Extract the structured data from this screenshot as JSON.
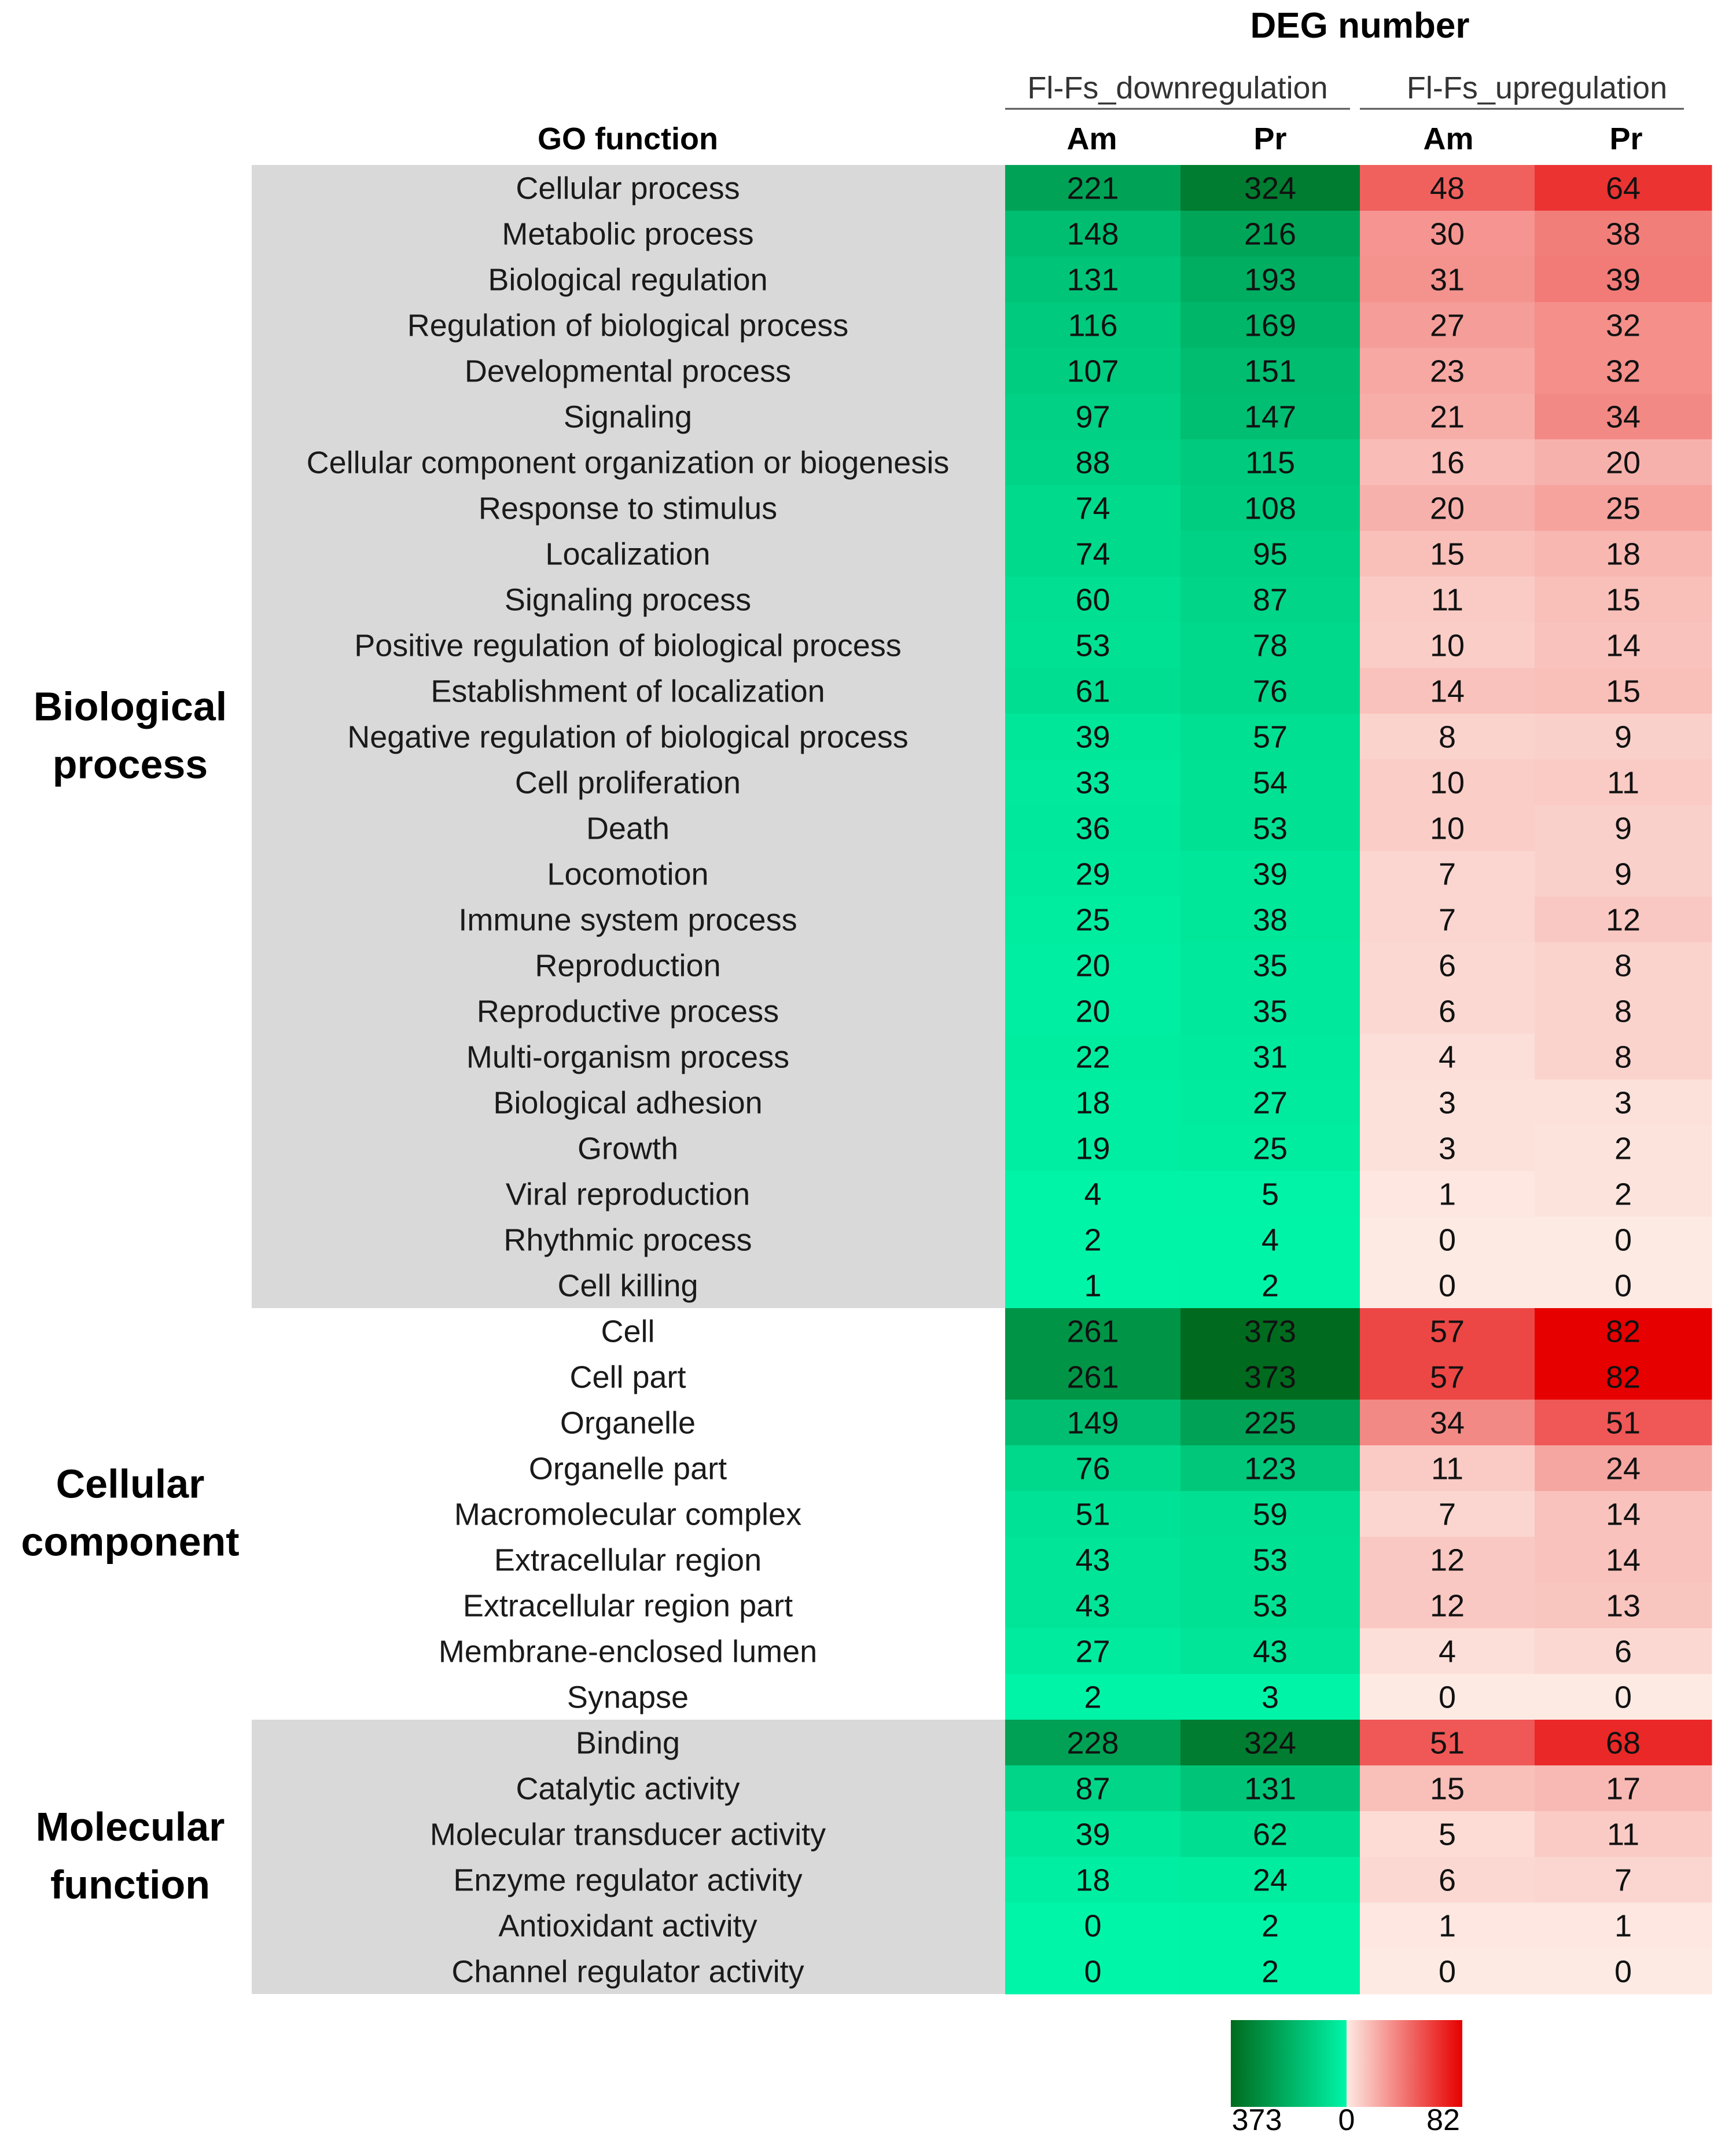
{
  "chart_data": {
    "type": "heatmap",
    "title": "DEG number",
    "row_header": "GO function",
    "column_groups": [
      {
        "label": "Fl-Fs_downregulation",
        "columns": [
          "Am",
          "Pr"
        ]
      },
      {
        "label": "Fl-Fs_upregulation",
        "columns": [
          "Am",
          "Pr"
        ]
      }
    ],
    "categories": [
      {
        "name": "Biological process",
        "name_lines": [
          "Biological",
          "process"
        ],
        "shaded": true,
        "rows": [
          {
            "label": "Cellular process",
            "values": [
              221,
              324,
              48,
              64
            ]
          },
          {
            "label": "Metabolic process",
            "values": [
              148,
              216,
              30,
              38
            ]
          },
          {
            "label": "Biological regulation",
            "values": [
              131,
              193,
              31,
              39
            ]
          },
          {
            "label": "Regulation of biological process",
            "values": [
              116,
              169,
              27,
              32
            ]
          },
          {
            "label": "Developmental process",
            "values": [
              107,
              151,
              23,
              32
            ]
          },
          {
            "label": "Signaling",
            "values": [
              97,
              147,
              21,
              34
            ]
          },
          {
            "label": "Cellular component organization or biogenesis",
            "values": [
              88,
              115,
              16,
              20
            ]
          },
          {
            "label": "Response to stimulus",
            "values": [
              74,
              108,
              20,
              25
            ]
          },
          {
            "label": "Localization",
            "values": [
              74,
              95,
              15,
              18
            ]
          },
          {
            "label": "Signaling process",
            "values": [
              60,
              87,
              11,
              15
            ]
          },
          {
            "label": "Positive regulation of biological process",
            "values": [
              53,
              78,
              10,
              14
            ]
          },
          {
            "label": "Establishment of localization",
            "values": [
              61,
              76,
              14,
              15
            ]
          },
          {
            "label": "Negative regulation of biological process",
            "values": [
              39,
              57,
              8,
              9
            ]
          },
          {
            "label": "Cell proliferation",
            "values": [
              33,
              54,
              10,
              11
            ]
          },
          {
            "label": "Death",
            "values": [
              36,
              53,
              10,
              9
            ]
          },
          {
            "label": "Locomotion",
            "values": [
              29,
              39,
              7,
              9
            ]
          },
          {
            "label": "Immune system process",
            "values": [
              25,
              38,
              7,
              12
            ]
          },
          {
            "label": "Reproduction",
            "values": [
              20,
              35,
              6,
              8
            ]
          },
          {
            "label": "Reproductive process",
            "values": [
              20,
              35,
              6,
              8
            ]
          },
          {
            "label": "Multi-organism process",
            "values": [
              22,
              31,
              4,
              8
            ]
          },
          {
            "label": "Biological adhesion",
            "values": [
              18,
              27,
              3,
              3
            ]
          },
          {
            "label": "Growth",
            "values": [
              19,
              25,
              3,
              2
            ]
          },
          {
            "label": "Viral reproduction",
            "values": [
              4,
              5,
              1,
              2
            ]
          },
          {
            "label": "Rhythmic process",
            "values": [
              2,
              4,
              0,
              0
            ]
          },
          {
            "label": "Cell killing",
            "values": [
              1,
              2,
              0,
              0
            ]
          }
        ]
      },
      {
        "name": "Cellular component",
        "name_lines": [
          "Cellular",
          "component"
        ],
        "shaded": false,
        "rows": [
          {
            "label": "Cell",
            "values": [
              261,
              373,
              57,
              82
            ]
          },
          {
            "label": "Cell part",
            "values": [
              261,
              373,
              57,
              82
            ]
          },
          {
            "label": "Organelle",
            "values": [
              149,
              225,
              34,
              51
            ]
          },
          {
            "label": "Organelle part",
            "values": [
              76,
              123,
              11,
              24
            ]
          },
          {
            "label": "Macromolecular complex",
            "values": [
              51,
              59,
              7,
              14
            ]
          },
          {
            "label": "Extracellular region",
            "values": [
              43,
              53,
              12,
              14
            ]
          },
          {
            "label": "Extracellular region part",
            "values": [
              43,
              53,
              12,
              13
            ]
          },
          {
            "label": "Membrane-enclosed lumen",
            "values": [
              27,
              43,
              4,
              6
            ]
          },
          {
            "label": "Synapse",
            "values": [
              2,
              3,
              0,
              0
            ]
          }
        ]
      },
      {
        "name": "Molecular function",
        "name_lines": [
          "Molecular",
          "function"
        ],
        "shaded": true,
        "rows": [
          {
            "label": "Binding",
            "values": [
              228,
              324,
              51,
              68
            ]
          },
          {
            "label": "Catalytic activity",
            "values": [
              87,
              131,
              15,
              17
            ]
          },
          {
            "label": "Molecular transducer activity",
            "values": [
              39,
              62,
              5,
              11
            ]
          },
          {
            "label": "Enzyme regulator activity",
            "values": [
              18,
              24,
              6,
              7
            ]
          },
          {
            "label": "Antioxidant activity",
            "values": [
              0,
              2,
              1,
              1
            ]
          },
          {
            "label": "Channel regulator activity",
            "values": [
              0,
              2,
              0,
              0
            ]
          }
        ]
      }
    ],
    "color_scale": {
      "down": {
        "max": 373,
        "min": 0,
        "max_color": "#006b1e",
        "min_color": "#00f5a8"
      },
      "up": {
        "min": 0,
        "max": 82,
        "min_color": "#fdeae3",
        "max_color": "#e60000"
      },
      "labels": [
        "373",
        "0",
        "82"
      ]
    },
    "colors": {
      "label_shade": "#d9d9d9",
      "text": "#000000"
    }
  }
}
